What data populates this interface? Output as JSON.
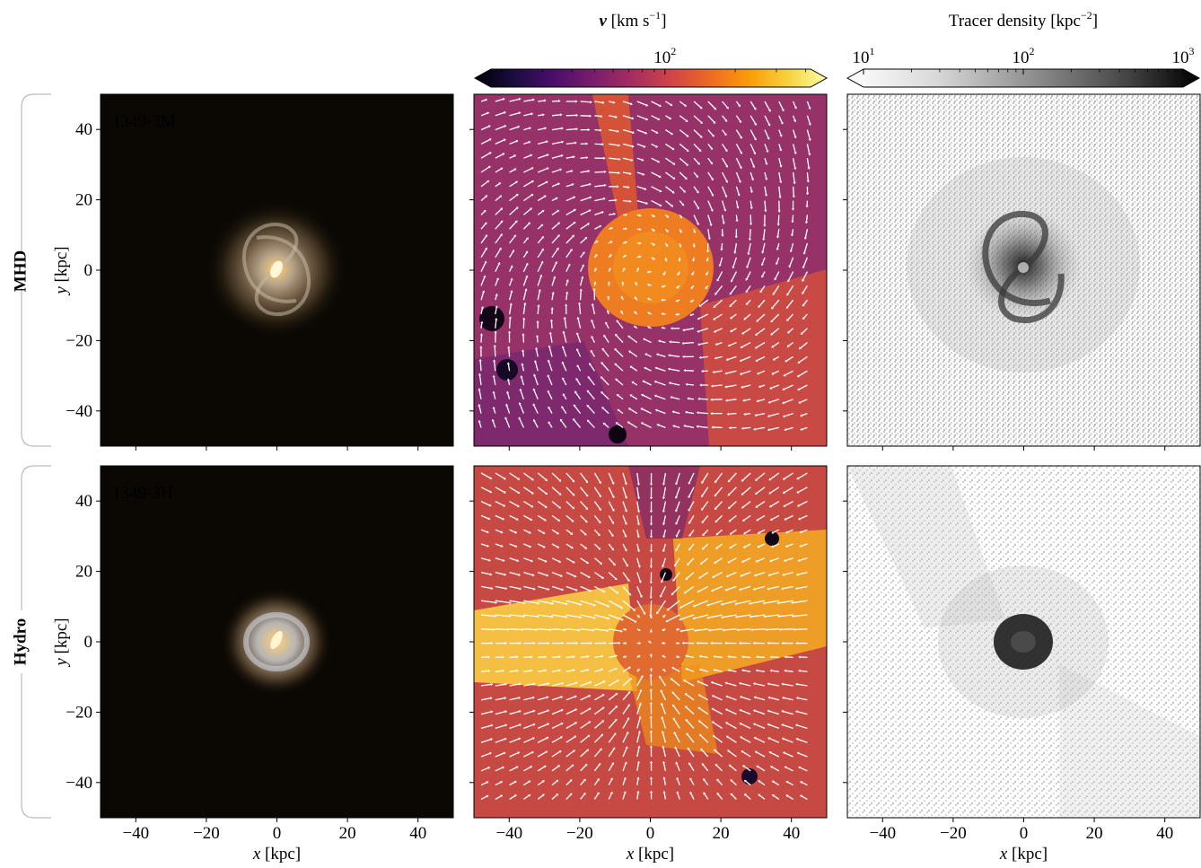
{
  "colorbars": {
    "velocity": {
      "label": "v",
      "label_suffix": " [km s",
      "label_exp": "−1",
      "label_end": "]",
      "tick_base": "10",
      "tick_exps": [
        "2"
      ],
      "tick_values": [
        100
      ],
      "range": [
        18,
        420
      ],
      "scale": "log",
      "colormap": "inferno",
      "extends": "both"
    },
    "tracer": {
      "label": "Tracer density [kpc",
      "label_exp": "−2",
      "label_end": "]",
      "tick_base": "10",
      "tick_exps": [
        "1",
        "2",
        "3"
      ],
      "tick_values": [
        10,
        100,
        1000
      ],
      "range": [
        10,
        1000
      ],
      "scale": "log",
      "colormap": "greys",
      "extends": "both"
    }
  },
  "rows": [
    {
      "group": "MHD",
      "run_label": "1349-3M"
    },
    {
      "group": "Hydro",
      "run_label": "1349-3H"
    }
  ],
  "axes": {
    "xlabel_var": "x",
    "ylabel_var": "y",
    "unit": " [kpc]",
    "ticks": [
      -40,
      -20,
      0,
      20,
      40
    ],
    "tick_labels": [
      "−40",
      "−20",
      "0",
      "20",
      "40"
    ],
    "xlim": [
      -50,
      50
    ],
    "ylim": [
      -50,
      50
    ]
  },
  "chart_data": [
    {
      "type": "heatmap",
      "panel": "stellar-image",
      "row": "MHD",
      "label": "1349-3M",
      "xlim": [
        -50,
        50
      ],
      "ylim": [
        -50,
        50
      ]
    },
    {
      "type": "heatmap",
      "panel": "velocity-map",
      "row": "MHD",
      "xlim": [
        -50,
        50
      ],
      "ylim": [
        -50,
        50
      ],
      "quiver": true
    },
    {
      "type": "heatmap",
      "panel": "tracer-density",
      "row": "MHD",
      "xlim": [
        -50,
        50
      ],
      "ylim": [
        -50,
        50
      ]
    },
    {
      "type": "heatmap",
      "panel": "stellar-image",
      "row": "Hydro",
      "label": "1349-3H",
      "xlim": [
        -50,
        50
      ],
      "ylim": [
        -50,
        50
      ]
    },
    {
      "type": "heatmap",
      "panel": "velocity-map",
      "row": "Hydro",
      "xlim": [
        -50,
        50
      ],
      "ylim": [
        -50,
        50
      ],
      "quiver": true
    },
    {
      "type": "heatmap",
      "panel": "tracer-density",
      "row": "Hydro",
      "xlim": [
        -50,
        50
      ],
      "ylim": [
        -50,
        50
      ]
    }
  ],
  "colors": {
    "inferno": [
      "#000004",
      "#1b0c41",
      "#4a0c6b",
      "#781c6d",
      "#a52c60",
      "#cf4446",
      "#ed6925",
      "#fb9b06",
      "#f7d13d",
      "#fcffa4"
    ],
    "greys": [
      "#ffffff",
      "#d9d9d9",
      "#969696",
      "#525252",
      "#000000"
    ],
    "bracket": "#bbbbbb",
    "group_label": "#999999"
  }
}
